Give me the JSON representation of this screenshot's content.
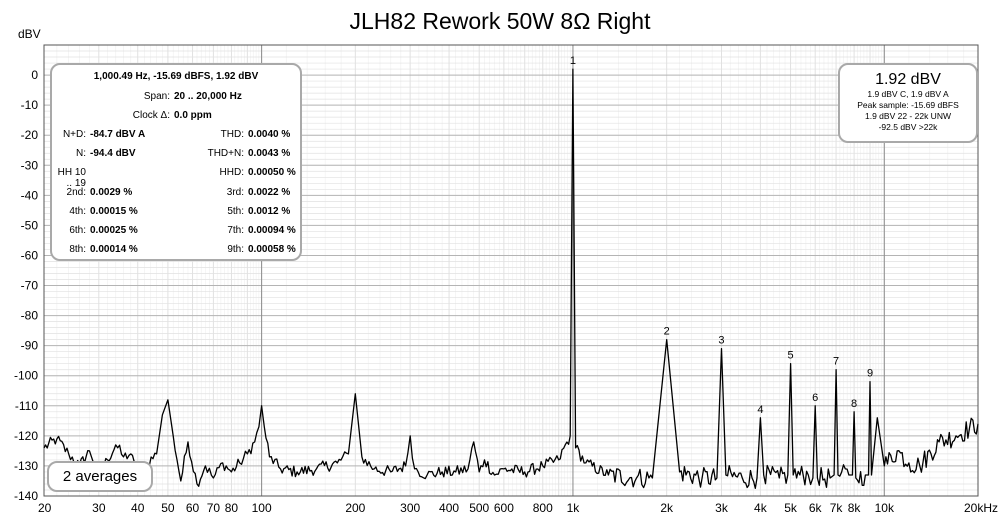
{
  "title": "JLH82 Rework 50W 8Ω Right",
  "stats": {
    "header1": "1,000.49 Hz, -15.69 dBFS, 1.92 dBV",
    "span_label": "Span:",
    "span_value": "20 .. 20,000 Hz",
    "clock_label": "Clock Δ:",
    "clock_value": "0.0 ppm",
    "rows": [
      {
        "l1": "N+D:",
        "v1": "-84.7 dBV A",
        "l2": "THD:",
        "v2": "0.0040 %"
      },
      {
        "l1": "N:",
        "v1": "-94.4 dBV",
        "l2": "THD+N:",
        "v2": "0.0043 %"
      },
      {
        "l1": "HH 10 .. 19",
        "v1": "",
        "l2": "HHD:",
        "v2": "0.00050 %"
      },
      {
        "l1": "2nd:",
        "v1": "0.0029 %",
        "l2": "3rd:",
        "v2": "0.0022 %"
      },
      {
        "l1": "4th:",
        "v1": "0.00015 %",
        "l2": "5th:",
        "v2": "0.0012 %"
      },
      {
        "l1": "6th:",
        "v1": "0.00025 %",
        "l2": "7th:",
        "v2": "0.00094 %"
      },
      {
        "l1": "8th:",
        "v1": "0.00014 %",
        "l2": "9th:",
        "v2": "0.00058 %"
      }
    ]
  },
  "level": {
    "big": "1.92 dBV",
    "lines": [
      "1.9 dBV C, 1.9 dBV A",
      "Peak sample: -15.69 dBFS",
      "1.9 dBV 22 - 22k UNW",
      "-92.5 dBV >22k"
    ]
  },
  "averages": "2 averages",
  "colors": {
    "trace": "#000000",
    "grid_major": "#b4b4b4",
    "grid_minor": "#e1e1e1",
    "box_border": "#a9a9a9"
  },
  "chart_data": {
    "type": "line",
    "title": "JLH82 Rework 50W 8Ω Right",
    "ylabel": "dBV",
    "xlabel": "",
    "x_scale": "log",
    "xlim": [
      20,
      20000
    ],
    "ylim": [
      -140,
      10
    ],
    "x_ticks": [
      {
        "v": 20,
        "t": "20"
      },
      {
        "v": 30,
        "t": "30"
      },
      {
        "v": 40,
        "t": "40"
      },
      {
        "v": 50,
        "t": "50"
      },
      {
        "v": 60,
        "t": "60"
      },
      {
        "v": 70,
        "t": "70"
      },
      {
        "v": 80,
        "t": "80"
      },
      {
        "v": 100,
        "t": "100"
      },
      {
        "v": 200,
        "t": "200"
      },
      {
        "v": 300,
        "t": "300"
      },
      {
        "v": 400,
        "t": "400"
      },
      {
        "v": 500,
        "t": "500"
      },
      {
        "v": 600,
        "t": "600"
      },
      {
        "v": 800,
        "t": "800"
      },
      {
        "v": 1000,
        "t": "1k"
      },
      {
        "v": 2000,
        "t": "2k"
      },
      {
        "v": 3000,
        "t": "3k"
      },
      {
        "v": 4000,
        "t": "4k"
      },
      {
        "v": 5000,
        "t": "5k"
      },
      {
        "v": 6000,
        "t": "6k"
      },
      {
        "v": 7000,
        "t": "7k"
      },
      {
        "v": 8000,
        "t": "8k"
      },
      {
        "v": 10000,
        "t": "10k"
      },
      {
        "v": 20000,
        "t": "20kHz"
      }
    ],
    "y_ticks": [
      0,
      -10,
      -20,
      -30,
      -40,
      -50,
      -60,
      -70,
      -80,
      -90,
      -100,
      -110,
      -120,
      -130,
      -140
    ],
    "grid": true,
    "series": [
      {
        "x": [
          20,
          22,
          24,
          26,
          28,
          30,
          32,
          34,
          36,
          38,
          40,
          43,
          46,
          48,
          50,
          52,
          55,
          58,
          62,
          66,
          70,
          75,
          80,
          85,
          90,
          95,
          98,
          100,
          102,
          106,
          115,
          130,
          150,
          175,
          190,
          200,
          210,
          230,
          260,
          290,
          300,
          310,
          340,
          380,
          420,
          460,
          480,
          500,
          520,
          560,
          600,
          700,
          800,
          900,
          980,
          1000,
          1020,
          1100,
          1300,
          1600,
          1800,
          2000,
          2200,
          2600,
          2900,
          3000,
          3100,
          3500,
          3900,
          4000,
          4100,
          4600,
          4900,
          5000,
          5100,
          5700,
          5900,
          6000,
          6100,
          6700,
          6900,
          7000,
          7100,
          7700,
          7900,
          8000,
          8100,
          8700,
          8900,
          9000,
          9100,
          9500,
          10000,
          11000,
          12000,
          13000,
          15000,
          17000,
          20000
        ],
        "y": [
          -124,
          -121,
          -126,
          -130,
          -125,
          -132,
          -128,
          -123,
          -127,
          -126,
          -134,
          -129,
          -126,
          -113,
          -108,
          -120,
          -135,
          -122,
          -136,
          -130,
          -134,
          -129,
          -132,
          -129,
          -126,
          -122,
          -117,
          -110,
          -117,
          -127,
          -131,
          -132,
          -131,
          -129,
          -126,
          -106,
          -127,
          -131,
          -132,
          -130,
          -120,
          -131,
          -133,
          -132,
          -132,
          -131,
          -122,
          -132,
          -128,
          -133,
          -131,
          -132,
          -130,
          -128,
          -120,
          2,
          -124,
          -129,
          -133,
          -134,
          -134,
          -88,
          -132,
          -134,
          -134,
          -91,
          -133,
          -134,
          -134,
          -114,
          -133,
          -134,
          -133,
          -96,
          -133,
          -133,
          -134,
          -110,
          -134,
          -134,
          -133,
          -98,
          -133,
          -133,
          -133,
          -112,
          -134,
          -133,
          -133,
          -102,
          -133,
          -114,
          -130,
          -125,
          -129,
          -130,
          -122,
          -120,
          -116
        ]
      }
    ],
    "annotations": [
      {
        "x": 1000,
        "y": 2,
        "text": "1"
      },
      {
        "x": 2000,
        "y": -88,
        "text": "2"
      },
      {
        "x": 3000,
        "y": -91,
        "text": "3"
      },
      {
        "x": 4000,
        "y": -114,
        "text": "4"
      },
      {
        "x": 5000,
        "y": -96,
        "text": "5"
      },
      {
        "x": 6000,
        "y": -110,
        "text": "6"
      },
      {
        "x": 7000,
        "y": -98,
        "text": "7"
      },
      {
        "x": 8000,
        "y": -112,
        "text": "8"
      },
      {
        "x": 9000,
        "y": -102,
        "text": "9"
      }
    ]
  }
}
